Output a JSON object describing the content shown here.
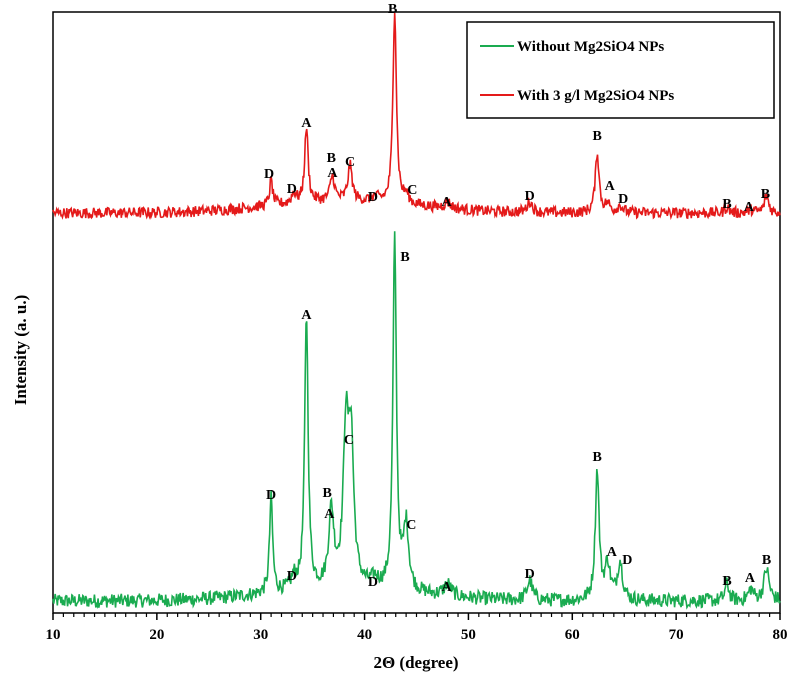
{
  "chart_data": {
    "type": "line",
    "title": "",
    "xlabel": "2Θ (degree)",
    "ylabel": "Intensity (a. u.)",
    "xlim": [
      10,
      80
    ],
    "xticks": [
      10,
      20,
      30,
      40,
      50,
      60,
      70,
      80
    ],
    "yticks": false,
    "grid": false,
    "legend": {
      "placement": "top-right",
      "entries": [
        {
          "label": "Without Mg2SiO4 NPs",
          "color": "#1aab50"
        },
        {
          "label": "With 3 g/l Mg2SiO4 NPs",
          "color": "#e41a1a"
        }
      ]
    },
    "colors": {
      "without": "#1aab50",
      "with": "#e41a1a"
    },
    "series": [
      {
        "name": "Without Mg2SiO4 NPs",
        "color": "#1aab50",
        "baseline": 0.5,
        "noise": 0.7,
        "peaks": [
          {
            "x": 31.0,
            "height": 9.5,
            "width": 0.18
          },
          {
            "x": 33.2,
            "height": 1.2,
            "width": 0.3
          },
          {
            "x": 34.4,
            "height": 27.5,
            "width": 0.2
          },
          {
            "x": 36.8,
            "height": 7.5,
            "width": 0.3
          },
          {
            "x": 38.2,
            "height": 15.0,
            "width": 0.3
          },
          {
            "x": 38.7,
            "height": 14.0,
            "width": 0.3
          },
          {
            "x": 41.0,
            "height": 0.8,
            "width": 0.4
          },
          {
            "x": 42.9,
            "height": 35.0,
            "width": 0.2
          },
          {
            "x": 44.0,
            "height": 6.5,
            "width": 0.3
          },
          {
            "x": 48.0,
            "height": 1.2,
            "width": 0.4
          },
          {
            "x": 55.9,
            "height": 2.0,
            "width": 0.3
          },
          {
            "x": 62.4,
            "height": 13.0,
            "width": 0.22
          },
          {
            "x": 63.4,
            "height": 3.5,
            "width": 0.3
          },
          {
            "x": 64.6,
            "height": 3.8,
            "width": 0.3
          },
          {
            "x": 74.9,
            "height": 1.8,
            "width": 0.22
          },
          {
            "x": 77.2,
            "height": 1.1,
            "width": 0.3
          },
          {
            "x": 78.7,
            "height": 3.2,
            "width": 0.3
          }
        ],
        "peak_labels": [
          {
            "label": "D",
            "x": 31.0,
            "y": 10.7
          },
          {
            "label": "D",
            "x": 33.0,
            "y": 2.6
          },
          {
            "label": "A",
            "x": 34.4,
            "y": 28.7
          },
          {
            "label": "B",
            "x": 36.4,
            "y": 10.9
          },
          {
            "label": "A",
            "x": 36.6,
            "y": 8.8
          },
          {
            "label": "C",
            "x": 38.5,
            "y": 16.2
          },
          {
            "label": "D",
            "x": 40.8,
            "y": 2.0
          },
          {
            "label": "B",
            "x": 43.9,
            "y": 34.5
          },
          {
            "label": "C",
            "x": 44.5,
            "y": 7.7
          },
          {
            "label": "A",
            "x": 47.9,
            "y": 1.5
          },
          {
            "label": "D",
            "x": 55.9,
            "y": 2.8
          },
          {
            "label": "B",
            "x": 62.4,
            "y": 14.5
          },
          {
            "label": "A",
            "x": 63.8,
            "y": 5.0
          },
          {
            "label": "D",
            "x": 65.3,
            "y": 4.2
          },
          {
            "label": "B",
            "x": 74.9,
            "y": 2.1
          },
          {
            "label": "A",
            "x": 77.1,
            "y": 2.4
          },
          {
            "label": "B",
            "x": 78.7,
            "y": 4.2
          }
        ]
      },
      {
        "name": "With 3 g/l Mg2SiO4 NPs",
        "color": "#e41a1a",
        "baseline": 39.3,
        "noise": 0.55,
        "peaks": [
          {
            "x": 31.0,
            "height": 2.5,
            "width": 0.18
          },
          {
            "x": 33.2,
            "height": 1.0,
            "width": 0.25
          },
          {
            "x": 34.4,
            "height": 7.5,
            "width": 0.2
          },
          {
            "x": 36.9,
            "height": 2.5,
            "width": 0.25
          },
          {
            "x": 38.6,
            "height": 3.5,
            "width": 0.25
          },
          {
            "x": 41.0,
            "height": 0.4,
            "width": 0.4
          },
          {
            "x": 42.9,
            "height": 19.5,
            "width": 0.2
          },
          {
            "x": 44.0,
            "height": 0.8,
            "width": 0.3
          },
          {
            "x": 48.0,
            "height": 0.6,
            "width": 0.4
          },
          {
            "x": 55.9,
            "height": 1.1,
            "width": 0.3
          },
          {
            "x": 62.4,
            "height": 6.0,
            "width": 0.22
          },
          {
            "x": 63.4,
            "height": 0.8,
            "width": 0.3
          },
          {
            "x": 64.6,
            "height": 0.7,
            "width": 0.3
          },
          {
            "x": 74.9,
            "height": 0.6,
            "width": 0.22
          },
          {
            "x": 77.2,
            "height": 0.3,
            "width": 0.3
          },
          {
            "x": 78.7,
            "height": 1.7,
            "width": 0.25
          }
        ],
        "peak_labels": [
          {
            "label": "D",
            "x": 30.8,
            "y": 42.8
          },
          {
            "label": "D",
            "x": 33.0,
            "y": 41.3
          },
          {
            "label": "A",
            "x": 34.4,
            "y": 47.9
          },
          {
            "label": "B",
            "x": 36.8,
            "y": 44.4
          },
          {
            "label": "A",
            "x": 36.9,
            "y": 42.9
          },
          {
            "label": "C",
            "x": 38.6,
            "y": 44.0
          },
          {
            "label": "D",
            "x": 40.8,
            "y": 40.5
          },
          {
            "label": "B",
            "x": 42.7,
            "y": 59.3
          },
          {
            "label": "C",
            "x": 44.6,
            "y": 41.2
          },
          {
            "label": "A",
            "x": 47.9,
            "y": 40.0
          },
          {
            "label": "D",
            "x": 55.9,
            "y": 40.6
          },
          {
            "label": "B",
            "x": 62.4,
            "y": 46.6
          },
          {
            "label": "A",
            "x": 63.6,
            "y": 41.6
          },
          {
            "label": "D",
            "x": 64.9,
            "y": 40.3
          },
          {
            "label": "B",
            "x": 74.9,
            "y": 39.8
          },
          {
            "label": "A",
            "x": 77.0,
            "y": 39.5
          },
          {
            "label": "B",
            "x": 78.6,
            "y": 40.8
          }
        ]
      }
    ]
  }
}
